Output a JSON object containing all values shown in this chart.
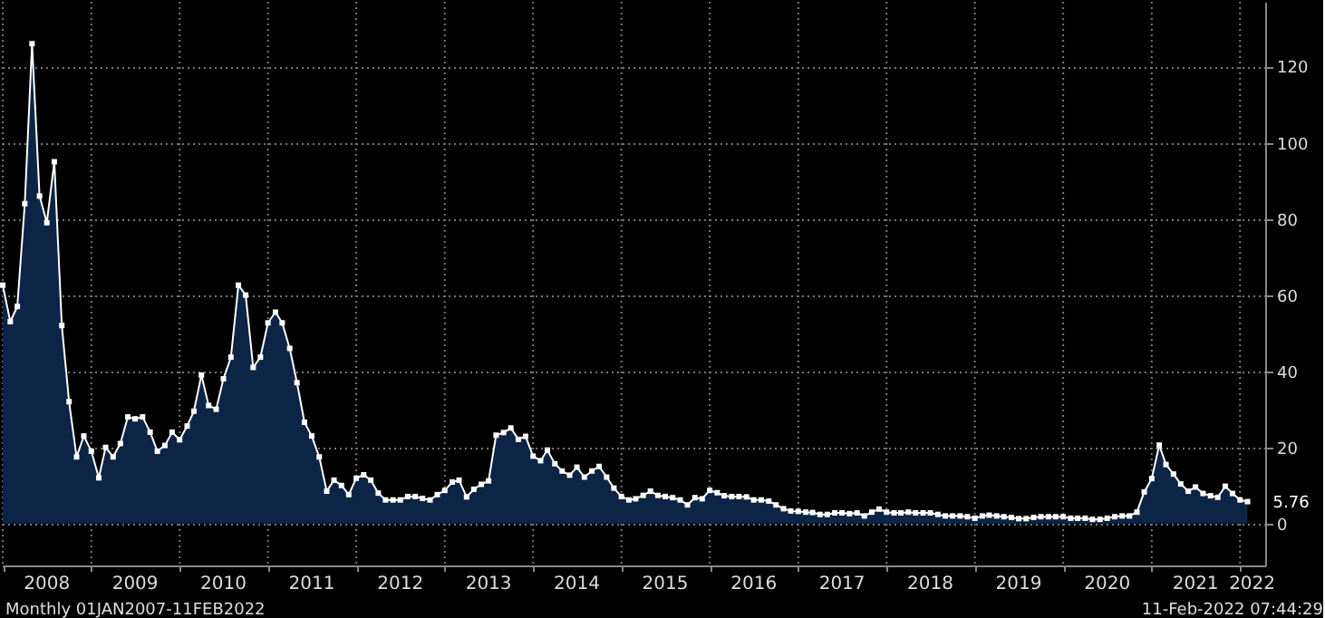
{
  "chart_data": {
    "type": "area",
    "x": [
      "2008-01",
      "2008-02",
      "2008-03",
      "2008-04",
      "2008-05",
      "2008-06",
      "2008-07",
      "2008-08",
      "2008-09",
      "2008-10",
      "2008-11",
      "2008-12",
      "2009-01",
      "2009-02",
      "2009-03",
      "2009-04",
      "2009-05",
      "2009-06",
      "2009-07",
      "2009-08",
      "2009-09",
      "2009-10",
      "2009-11",
      "2009-12",
      "2010-01",
      "2010-02",
      "2010-03",
      "2010-04",
      "2010-05",
      "2010-06",
      "2010-07",
      "2010-08",
      "2010-09",
      "2010-10",
      "2010-11",
      "2010-12",
      "2011-01",
      "2011-02",
      "2011-03",
      "2011-04",
      "2011-05",
      "2011-06",
      "2011-07",
      "2011-08",
      "2011-09",
      "2011-10",
      "2011-11",
      "2011-12",
      "2012-01",
      "2012-02",
      "2012-03",
      "2012-04",
      "2012-05",
      "2012-06",
      "2012-07",
      "2012-08",
      "2012-09",
      "2012-10",
      "2012-11",
      "2012-12",
      "2013-01",
      "2013-02",
      "2013-03",
      "2013-04",
      "2013-05",
      "2013-06",
      "2013-07",
      "2013-08",
      "2013-09",
      "2013-10",
      "2013-11",
      "2013-12",
      "2014-01",
      "2014-02",
      "2014-03",
      "2014-04",
      "2014-05",
      "2014-06",
      "2014-07",
      "2014-08",
      "2014-09",
      "2014-10",
      "2014-11",
      "2014-12",
      "2015-01",
      "2015-02",
      "2015-03",
      "2015-04",
      "2015-05",
      "2015-06",
      "2015-07",
      "2015-08",
      "2015-09",
      "2015-10",
      "2015-11",
      "2015-12",
      "2016-01",
      "2016-02",
      "2016-03",
      "2016-04",
      "2016-05",
      "2016-06",
      "2016-07",
      "2016-08",
      "2016-09",
      "2016-10",
      "2016-11",
      "2016-12",
      "2017-01",
      "2017-02",
      "2017-03",
      "2017-04",
      "2017-05",
      "2017-06",
      "2017-07",
      "2017-08",
      "2017-09",
      "2017-10",
      "2017-11",
      "2017-12",
      "2018-01",
      "2018-02",
      "2018-03",
      "2018-04",
      "2018-05",
      "2018-06",
      "2018-07",
      "2018-08",
      "2018-09",
      "2018-10",
      "2018-11",
      "2018-12",
      "2019-01",
      "2019-02",
      "2019-03",
      "2019-04",
      "2019-05",
      "2019-06",
      "2019-07",
      "2019-08",
      "2019-09",
      "2019-10",
      "2019-11",
      "2019-12",
      "2020-01",
      "2020-02",
      "2020-03",
      "2020-04",
      "2020-05",
      "2020-06",
      "2020-07",
      "2020-08",
      "2020-09",
      "2020-10",
      "2020-11",
      "2020-12",
      "2021-01",
      "2021-02",
      "2021-03",
      "2021-04",
      "2021-05",
      "2021-06",
      "2021-07",
      "2021-08",
      "2021-09",
      "2021-10",
      "2021-11",
      "2021-12",
      "2022-01",
      "2022-02"
    ],
    "series": [
      {
        "color": "#0c2446",
        "values": [
          62.6,
          53,
          57,
          84,
          126,
          86,
          79,
          95,
          52,
          32,
          17.5,
          23,
          19,
          12,
          20,
          17.5,
          21,
          28,
          27.5,
          28,
          24,
          19,
          20.5,
          24,
          22,
          25.6,
          29.5,
          39,
          31,
          30,
          38,
          43.7,
          62.6,
          60,
          41,
          43.7,
          52.7,
          55.5,
          52.7,
          46,
          37,
          26.6,
          23,
          17.5,
          8.5,
          11.4,
          10,
          7.6,
          11.9,
          12.8,
          11.4,
          8,
          6.2,
          6.2,
          6.2,
          7.1,
          7.1,
          6.6,
          6.2,
          7.6,
          8.7,
          10.9,
          11.4,
          7,
          9,
          10.3,
          11.2,
          23.2,
          23.9,
          25.1,
          22.1,
          22.9,
          17.7,
          16.5,
          19.3,
          15.7,
          13.8,
          12.7,
          14.8,
          12.2,
          13.8,
          15,
          12.2,
          9.3,
          7.1,
          6.2,
          6.5,
          7.4,
          8.5,
          7.4,
          7.1,
          6.8,
          6.2,
          4.9,
          6.8,
          6.5,
          8.7,
          8.1,
          7.3,
          7.1,
          7.1,
          7,
          6.2,
          6.2,
          5.9,
          4.9,
          3.9,
          3.3,
          3.2,
          3,
          2.9,
          2.4,
          2.4,
          2.8,
          2.8,
          2.6,
          2.8,
          2,
          3,
          3.8,
          3,
          2.8,
          2.8,
          3,
          2.8,
          2.8,
          2.8,
          2.4,
          2,
          2,
          2,
          1.8,
          1.4,
          2,
          2.2,
          2,
          1.8,
          1.6,
          1.3,
          1.3,
          1.6,
          1.8,
          1.8,
          1.8,
          1.8,
          1.4,
          1.4,
          1.4,
          1.1,
          1.1,
          1.4,
          1.8,
          2,
          2,
          3,
          8.3,
          11.8,
          20.6,
          15.5,
          13,
          10.4,
          8.5,
          9.6,
          7.9,
          7.3,
          6.9,
          9.8,
          7.9,
          6.2,
          5.76
        ]
      }
    ],
    "xlim": [
      "2007-12-28",
      "2022-04-15"
    ],
    "xticks": [
      {
        "value": "2008-01-01",
        "label": null
      },
      {
        "value": "2008-07-01",
        "label": "2008"
      },
      {
        "value": "2009-01-01",
        "label": null
      },
      {
        "value": "2009-07-01",
        "label": "2009"
      },
      {
        "value": "2010-01-01",
        "label": null
      },
      {
        "value": "2010-07-01",
        "label": "2010"
      },
      {
        "value": "2011-01-01",
        "label": null
      },
      {
        "value": "2011-07-01",
        "label": "2011"
      },
      {
        "value": "2012-01-01",
        "label": null
      },
      {
        "value": "2012-07-01",
        "label": "2012"
      },
      {
        "value": "2013-01-01",
        "label": null
      },
      {
        "value": "2013-07-01",
        "label": "2013"
      },
      {
        "value": "2014-01-01",
        "label": null
      },
      {
        "value": "2014-07-01",
        "label": "2014"
      },
      {
        "value": "2015-01-01",
        "label": null
      },
      {
        "value": "2015-07-01",
        "label": "2015"
      },
      {
        "value": "2016-01-01",
        "label": null
      },
      {
        "value": "2016-07-01",
        "label": "2016"
      },
      {
        "value": "2017-01-01",
        "label": null
      },
      {
        "value": "2017-07-01",
        "label": "2017"
      },
      {
        "value": "2018-01-01",
        "label": null
      },
      {
        "value": "2018-07-01",
        "label": "2018"
      },
      {
        "value": "2019-01-01",
        "label": null
      },
      {
        "value": "2019-07-01",
        "label": "2019"
      },
      {
        "value": "2020-01-01",
        "label": null
      },
      {
        "value": "2020-07-01",
        "label": "2020"
      },
      {
        "value": "2021-01-01",
        "label": null
      },
      {
        "value": "2021-07-01",
        "label": "2021"
      },
      {
        "value": "2022-01-01",
        "label": null
      },
      {
        "value": "2022-02-20",
        "label": "2022"
      }
    ],
    "ylim": [
      -11,
      137
    ],
    "yticks": [
      0,
      20,
      40,
      60,
      80,
      100,
      120
    ],
    "grid": true,
    "marker": "square",
    "annotations": [
      {
        "text": "5.76",
        "x": "2022-02",
        "y": 5.76
      },
      "Monthly 01JAN2007-11FEB2022",
      "11-Feb-2022 07:44:29"
    ]
  }
}
